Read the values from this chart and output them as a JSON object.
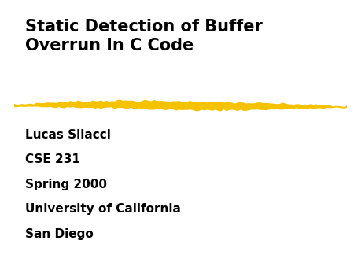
{
  "background_color": "#ffffff",
  "border_color": "#cccccc",
  "title_line1": "Static Detection of Buffer",
  "title_line2": "Overrun In C Code",
  "title_color": "#000000",
  "title_fontsize": 15,
  "title_fontweight": "bold",
  "title_fontfamily": "Arial",
  "divider_color": "#F5C200",
  "body_lines": [
    "Lucas Silacci",
    "CSE 231",
    "Spring 2000",
    "University of California",
    "San Diego"
  ],
  "body_color": "#000000",
  "body_fontsize": 11,
  "body_fontweight": "bold",
  "body_fontfamily": "Arial"
}
